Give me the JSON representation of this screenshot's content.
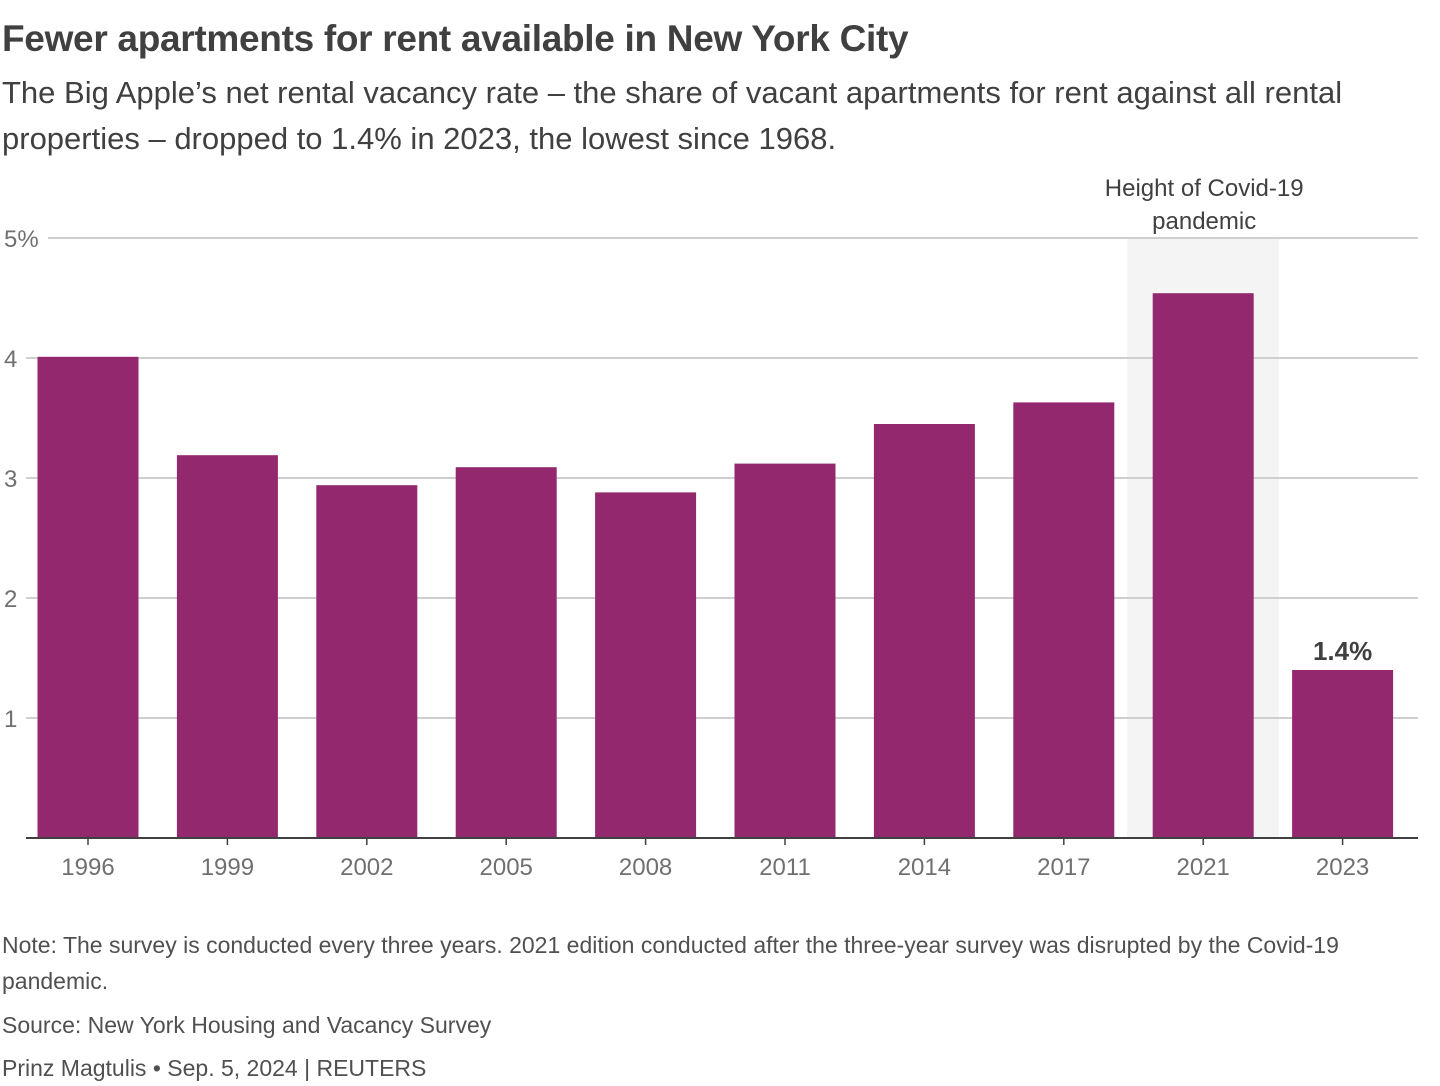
{
  "title": "Fewer apartments for rent available in New York City",
  "subtitle": "The Big Apple’s net rental vacancy rate – the share of vacant apartments for rent against all rental properties – dropped to 1.4% in 2023, the lowest since 1968.",
  "chart_data": {
    "type": "bar",
    "categories": [
      "1996",
      "1999",
      "2002",
      "2005",
      "2008",
      "2011",
      "2014",
      "2017",
      "2021",
      "2023"
    ],
    "values": [
      4.01,
      3.19,
      2.94,
      3.09,
      2.88,
      3.12,
      3.45,
      3.63,
      4.54,
      1.4
    ],
    "ylim": [
      0,
      5
    ],
    "yticks": [
      1,
      2,
      3,
      4,
      5
    ],
    "ytick_labels": [
      "1",
      "2",
      "3",
      "4",
      "5%"
    ],
    "grid": true,
    "bar_color": "#93286f",
    "highlight": {
      "category": "2021",
      "label_lines": [
        "Height of Covid-19",
        "pandemic"
      ],
      "shade_color": "#f4f4f5"
    },
    "data_labels": [
      {
        "category": "2023",
        "text": "1.4%"
      }
    ]
  },
  "footer": {
    "note": "Note: The survey is conducted every three years. 2021 edition conducted after the three-year survey was disrupted by the Covid-19 pandemic.",
    "source": "Source: New York Housing and Vacancy Survey",
    "credit": "Prinz Magtulis • Sep. 5, 2024 | REUTERS"
  }
}
